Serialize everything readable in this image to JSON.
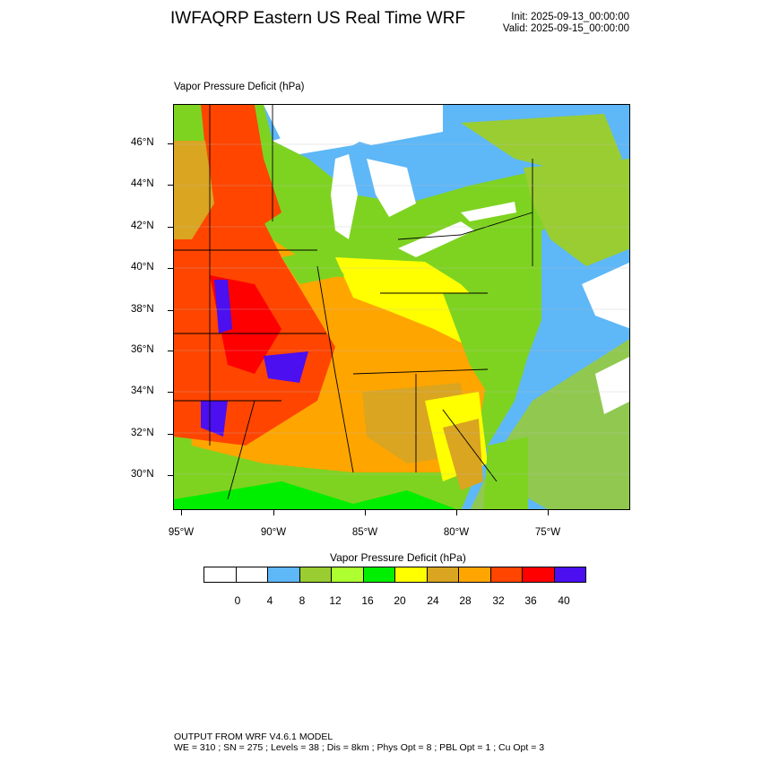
{
  "header": {
    "title": "IWFAQRP Eastern US Real Time WRF",
    "init": "Init: 2025-09-13_00:00:00",
    "valid": "Valid: 2025-09-15_00:00:00"
  },
  "plot": {
    "field_label": "Vapor Pressure Deficit   (hPa)",
    "lat_labels": [
      "46°N",
      "44°N",
      "42°N",
      "40°N",
      "38°N",
      "36°N",
      "34°N",
      "32°N",
      "30°N"
    ],
    "lon_labels": [
      "95°W",
      "90°W",
      "85°W",
      "80°W",
      "75°W"
    ]
  },
  "legend": {
    "title": "Vapor Pressure Deficit  (hPa)",
    "labels": [
      "0",
      "4",
      "8",
      "12",
      "16",
      "20",
      "24",
      "28",
      "32",
      "36",
      "40"
    ],
    "colors": [
      "#ffffff",
      "#ffffff",
      "#5eb7f7",
      "#9acd32",
      "#adff2f",
      "#00ee00",
      "#ffff00",
      "#daa520",
      "#ffa500",
      "#ff4500",
      "#ff0000",
      "#4b0ff0"
    ]
  },
  "footer": {
    "line1": "OUTPUT FROM WRF V4.6.1 MODEL",
    "line2": "WE = 310 ; SN = 275 ; Levels = 38 ; Dis = 8km ; Phys Opt = 8 ; PBL Opt = 1 ; Cu Opt = 3"
  }
}
